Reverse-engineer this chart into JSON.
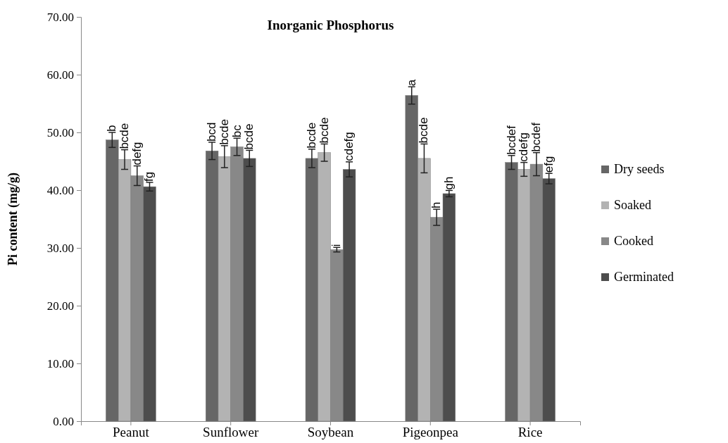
{
  "chart_data": {
    "type": "bar",
    "title": "Inorganic Phosphorus",
    "ylabel": "Pi content (mg/g)",
    "categories": [
      "Peanut",
      "Sunflower",
      "Soybean",
      "Pigeonpea",
      "Rice"
    ],
    "series": [
      {
        "name": "Dry seeds",
        "color": "#666666",
        "values": [
          48.7,
          46.8,
          45.5,
          56.4,
          44.8
        ],
        "errors": [
          1.3,
          1.5,
          1.6,
          1.5,
          1.2
        ],
        "value_labels": [
          "b",
          "bcd",
          "bcde",
          "a",
          "bcdef"
        ]
      },
      {
        "name": "Soaked",
        "color": "#b3b3b3",
        "values": [
          45.3,
          45.8,
          46.5,
          45.5,
          43.6
        ],
        "errors": [
          1.7,
          1.9,
          1.5,
          2.5,
          1.2
        ],
        "value_labels": [
          "bcde",
          "bcde",
          "bcde",
          "bcde",
          "cdefg"
        ]
      },
      {
        "name": "Cooked",
        "color": "#888888",
        "values": [
          42.5,
          47.5,
          29.7,
          35.3,
          44.5
        ],
        "errors": [
          1.7,
          1.5,
          0.4,
          1.4,
          2.0
        ],
        "value_labels": [
          "defg",
          "bc",
          "i",
          "h",
          "bcdef"
        ]
      },
      {
        "name": "Germinated",
        "color": "#4d4d4d",
        "values": [
          40.6,
          45.5,
          43.6,
          39.4,
          42.0
        ],
        "errors": [
          0.75,
          1.4,
          1.3,
          0.55,
          0.9
        ],
        "value_labels": [
          "fg",
          "bcde",
          "cdefg",
          "gh",
          "efg"
        ]
      }
    ],
    "ylim": [
      0,
      70
    ],
    "yticks": [
      {
        "value": 0,
        "label": "0.00"
      },
      {
        "value": 10,
        "label": "10.00"
      },
      {
        "value": 20,
        "label": "20.00"
      },
      {
        "value": 30,
        "label": "30.00"
      },
      {
        "value": 40,
        "label": "40.00"
      },
      {
        "value": 50,
        "label": "50.00"
      },
      {
        "value": 60,
        "label": "60.00"
      },
      {
        "value": 70,
        "label": "70.00"
      }
    ],
    "legend": "right"
  }
}
